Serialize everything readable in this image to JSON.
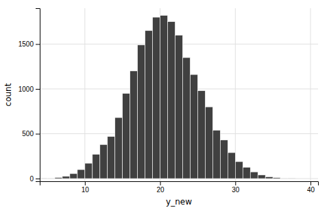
{
  "chart_data": {
    "type": "histogram",
    "xlabel": "y_new",
    "ylabel": "count",
    "color": "#404040",
    "bins": [
      4,
      5,
      6,
      7,
      8,
      9,
      10,
      11,
      12,
      13,
      14,
      15,
      16,
      17,
      18,
      19,
      20,
      21,
      22,
      23,
      24,
      25,
      26,
      27,
      28,
      29,
      30,
      31,
      32,
      33,
      34,
      35,
      36,
      37,
      38
    ],
    "values": [
      2,
      5,
      12,
      25,
      55,
      100,
      170,
      270,
      380,
      470,
      680,
      950,
      1200,
      1490,
      1650,
      1800,
      1820,
      1750,
      1600,
      1350,
      1160,
      980,
      800,
      540,
      430,
      290,
      190,
      125,
      75,
      40,
      20,
      10,
      5,
      2
    ],
    "xlim": [
      4,
      41
    ],
    "ylim": [
      -30,
      1900
    ],
    "xticks": [
      10,
      20,
      30,
      40
    ],
    "yticks": [
      0,
      500,
      1000,
      1500
    ],
    "grid": true
  }
}
